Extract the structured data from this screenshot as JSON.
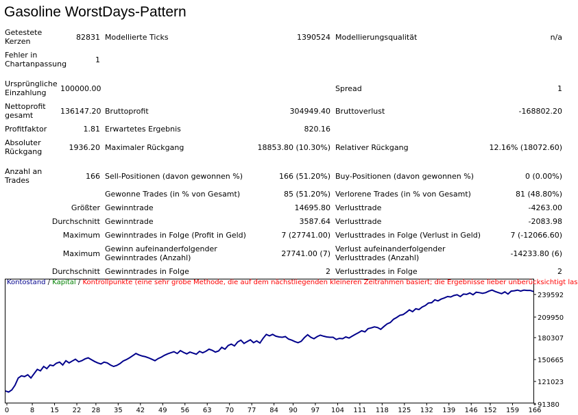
{
  "title": "Gasoline WorstDays-Pattern",
  "stats": {
    "r1": {
      "l1": "Getestete Kerzen",
      "v1": "82831",
      "l2": "Modellierte Ticks",
      "v2": "1390524",
      "l3": "Modellierungsqualität",
      "v3": "n/a"
    },
    "r2": {
      "l1": "Fehler in Chartanpassung",
      "v1": "1"
    },
    "r3": {
      "l1": "Ursprüngliche Einzahlung",
      "v1": "100000.00",
      "l3": "Spread",
      "v3": "1"
    },
    "r4": {
      "l1": "Nettoprofit gesamt",
      "v1": "136147.20",
      "l2": "Bruttoprofit",
      "v2": "304949.40",
      "l3": "Bruttoverlust",
      "v3": "-168802.20"
    },
    "r5": {
      "l1": "Profitfaktor",
      "v1": "1.81",
      "l2": "Erwartetes Ergebnis",
      "v2": "820.16"
    },
    "r6": {
      "l1": "Absoluter Rückgang",
      "v1": "1936.20",
      "l2": "Maximaler Rückgang",
      "v2": "18853.80 (10.30%)",
      "l3": "Relativer Rückgang",
      "v3": "12.16% (18072.60)"
    },
    "r7": {
      "l1": "Anzahl an Trades",
      "v1": "166",
      "l2": "Sell-Positionen (davon gewonnen %)",
      "v2": "166 (51.20%)",
      "l3": "Buy-Positionen (davon gewonnen %)",
      "v3": "0 (0.00%)"
    },
    "r8": {
      "l2": "Gewonne Trades (in % von Gesamt)",
      "v2": "85 (51.20%)",
      "l3": "Verlorene Trades (in % von Gesamt)",
      "v3": "81 (48.80%)"
    },
    "r9": {
      "k": "Größter",
      "l2": "Gewinntrade",
      "v2": "14695.80",
      "l3": "Verlusttrade",
      "v3": "-4263.00"
    },
    "r10": {
      "k": "Durchschnitt",
      "l2": "Gewinntrade",
      "v2": "3587.64",
      "l3": "Verlusttrade",
      "v3": "-2083.98"
    },
    "r11": {
      "k": "Maximum",
      "l2": "Gewinntrades in Folge (Profit in Geld)",
      "v2": "7 (27741.00)",
      "l3": "Verlusttrades in Folge (Verlust in Geld)",
      "v3": "7 (-12066.60)"
    },
    "r12": {
      "k": "Maximum",
      "l2": "Gewinn aufeinanderfolgender Gewinntrades (Anzahl)",
      "v2": "27741.00 (7)",
      "l3": "Verlust aufeinanderfolgender Verlusttrades (Anzahl)",
      "v3": "-14233.80 (6)"
    },
    "r13": {
      "k": "Durchschnitt",
      "l2": "Gewinntrades in Folge",
      "v2": "2",
      "l3": "Verlusttrades in Folge",
      "v3": "2"
    }
  },
  "legend": {
    "kontostand": "Kontostand",
    "sep1": " / ",
    "kapital": "Kapital",
    "sep2": " / ",
    "kontrollpunkte": "Kontrollpunkte (eine sehr grobe Methode, die auf dem nächstliegenden kleineren Zeitrahmen basiert; die Ergebnisse lieber unberücksichtigt lassen)"
  },
  "colors": {
    "balance": "#00008b",
    "equity": "#008000",
    "control": "#ff0000",
    "axis": "#000000"
  },
  "chart_data": {
    "type": "line",
    "series": [
      {
        "name": "Kontostand",
        "x": [
          0,
          1,
          2,
          3,
          4,
          5,
          6,
          7,
          8,
          9,
          10,
          11,
          12,
          13,
          14,
          15,
          16,
          17,
          18,
          19,
          20,
          21,
          22,
          23,
          24,
          25,
          26,
          27,
          28,
          29,
          30,
          31,
          32,
          33,
          34,
          35,
          36,
          37,
          38,
          39,
          40,
          41,
          42,
          43,
          44,
          45,
          46,
          47,
          48,
          49,
          50,
          51,
          52,
          53,
          54,
          55,
          56,
          57,
          58,
          59,
          60,
          61,
          62,
          63,
          64,
          65,
          66,
          67,
          68,
          69,
          70,
          71,
          72,
          73,
          74,
          75,
          76,
          77,
          78,
          79,
          80,
          81,
          82,
          83,
          84,
          85,
          86,
          87,
          88,
          89,
          90,
          91,
          92,
          93,
          94,
          95,
          96,
          97,
          98,
          99,
          100,
          101,
          102,
          103,
          104,
          105,
          106,
          107,
          108,
          109,
          110,
          111,
          112,
          113,
          114,
          115,
          116,
          117,
          118,
          119,
          120,
          121,
          122,
          123,
          124,
          125,
          126,
          127,
          128,
          129,
          130,
          131,
          132,
          133,
          134,
          135,
          136,
          137,
          138,
          139,
          140,
          141,
          142,
          143,
          144,
          145,
          146,
          147,
          148,
          149,
          150,
          151,
          152,
          153,
          154,
          155,
          156,
          157,
          158,
          159,
          160,
          161,
          162,
          163,
          164,
          165,
          166
        ],
        "values": [
          100000,
          98500,
          101500,
          108000,
          118000,
          121000,
          120000,
          122500,
          118000,
          124000,
          130000,
          128000,
          134000,
          131000,
          136000,
          135000,
          138500,
          140000,
          136000,
          142000,
          139000,
          141500,
          144000,
          140500,
          142000,
          144500,
          146000,
          143500,
          141000,
          139000,
          137500,
          140000,
          139000,
          136000,
          134000,
          135500,
          138000,
          141500,
          143500,
          146000,
          149000,
          152000,
          150000,
          148500,
          147500,
          146000,
          144000,
          142000,
          145000,
          147000,
          149500,
          151500,
          153000,
          154500,
          152000,
          156000,
          153500,
          151500,
          154000,
          152500,
          151000,
          155000,
          153000,
          155000,
          158000,
          156500,
          154000,
          155500,
          160500,
          158000,
          163000,
          165000,
          162500,
          168000,
          170500,
          166000,
          168500,
          171000,
          167000,
          169500,
          166500,
          173000,
          178500,
          176500,
          178500,
          176000,
          175000,
          174500,
          175500,
          172000,
          170500,
          168500,
          167000,
          169000,
          174000,
          178000,
          174500,
          172500,
          175500,
          177500,
          176000,
          175000,
          174500,
          174500,
          171500,
          173000,
          172500,
          175000,
          173500,
          176000,
          178500,
          181000,
          183500,
          182000,
          186500,
          187500,
          189000,
          188000,
          185500,
          189500,
          193000,
          195000,
          199500,
          202000,
          205000,
          206000,
          209000,
          212500,
          210000,
          214000,
          213000,
          216500,
          218500,
          222000,
          222500,
          226500,
          225000,
          227500,
          229000,
          231000,
          230500,
          232500,
          233500,
          231000,
          234500,
          234000,
          236000,
          233500,
          237000,
          236500,
          235500,
          236500,
          238500,
          240000,
          238000,
          236500,
          235000,
          237500,
          234500,
          238500,
          239000,
          240000,
          238500,
          240000,
          239500,
          239500,
          238000
        ]
      }
    ],
    "xticks": [
      0,
      8,
      15,
      22,
      28,
      35,
      42,
      49,
      56,
      63,
      70,
      77,
      84,
      90,
      97,
      104,
      111,
      118,
      125,
      132,
      139,
      146,
      152,
      159,
      166
    ],
    "yticks": [
      239592,
      209950,
      180307,
      150665,
      121023,
      91380
    ],
    "xlim": [
      0,
      166
    ],
    "ylim": [
      91380,
      250000
    ]
  }
}
